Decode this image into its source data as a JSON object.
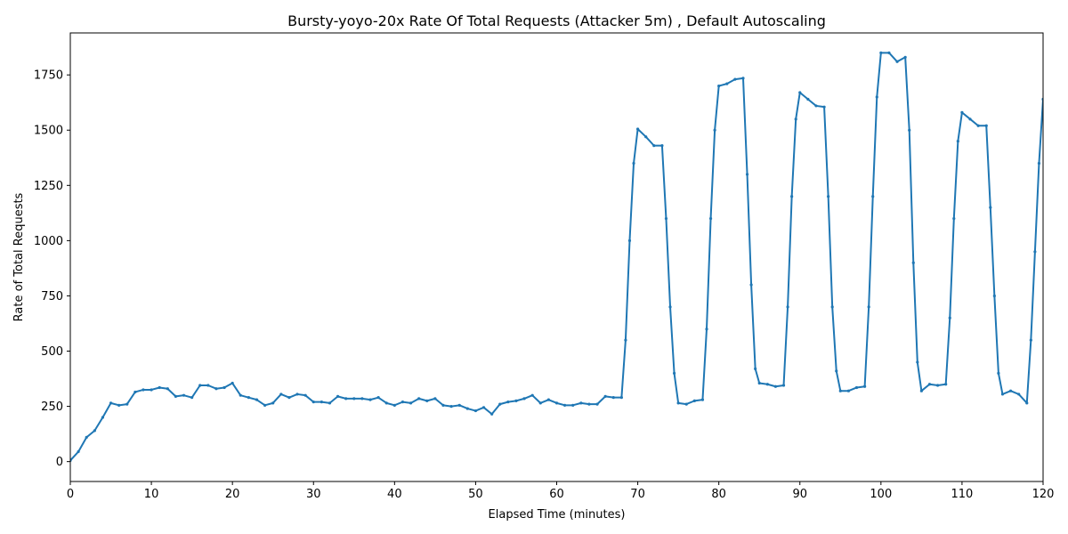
{
  "chart_data": {
    "type": "line",
    "title": "Bursty-yoyo-20x Rate Of Total Requests (Attacker 5m) , Default Autoscaling",
    "xlabel": "Elapsed Time (minutes)",
    "ylabel": "Rate of Total Requests",
    "xlim": [
      0,
      120
    ],
    "ylim": [
      -90,
      1940
    ],
    "xticks": [
      0,
      10,
      20,
      30,
      40,
      50,
      60,
      70,
      80,
      90,
      100,
      110,
      120
    ],
    "yticks": [
      0,
      250,
      500,
      750,
      1000,
      1250,
      1500,
      1750
    ],
    "grid": false,
    "legend": "none",
    "colors": {
      "series": "#1f77b4",
      "axes": "#000000"
    },
    "series": [
      {
        "marker": "point",
        "x": [
          0,
          1,
          2,
          3,
          4,
          5,
          6,
          7,
          8,
          9,
          10,
          11,
          12,
          13,
          14,
          15,
          16,
          17,
          18,
          19,
          20,
          21,
          22,
          23,
          24,
          25,
          26,
          27,
          28,
          29,
          30,
          31,
          32,
          33,
          34,
          35,
          36,
          37,
          38,
          39,
          40,
          41,
          42,
          43,
          44,
          45,
          46,
          47,
          48,
          49,
          50,
          51,
          52,
          53,
          54,
          55,
          56,
          57,
          58,
          59,
          60,
          61,
          62,
          63,
          64,
          65,
          66,
          67,
          68,
          68.5,
          69,
          69.5,
          70,
          71,
          72,
          73,
          73.5,
          74,
          74.5,
          75,
          76,
          77,
          78,
          78.5,
          79,
          79.5,
          80,
          81,
          82,
          83,
          83.5,
          84,
          84.5,
          85,
          86,
          87,
          88,
          88.5,
          89,
          89.5,
          90,
          91,
          92,
          93,
          93.5,
          94,
          94.5,
          95,
          96,
          97,
          98,
          98.5,
          99,
          99.5,
          100,
          101,
          102,
          103,
          103.5,
          104,
          104.5,
          105,
          106,
          107,
          108,
          108.5,
          109,
          109.5,
          110,
          111,
          112,
          113,
          113.5,
          114,
          114.5,
          115,
          116,
          117,
          118,
          118.5,
          119,
          119.5,
          120
        ],
        "y": [
          5,
          45,
          110,
          140,
          200,
          265,
          255,
          260,
          315,
          325,
          325,
          335,
          330,
          295,
          300,
          290,
          345,
          345,
          330,
          335,
          355,
          300,
          290,
          280,
          255,
          265,
          305,
          290,
          305,
          300,
          270,
          270,
          265,
          295,
          285,
          285,
          285,
          280,
          290,
          265,
          255,
          270,
          265,
          285,
          275,
          285,
          255,
          250,
          255,
          240,
          230,
          245,
          215,
          260,
          270,
          275,
          285,
          300,
          265,
          280,
          265,
          255,
          255,
          265,
          260,
          260,
          295,
          290,
          290,
          550,
          1000,
          1350,
          1505,
          1470,
          1430,
          1430,
          1100,
          700,
          400,
          265,
          260,
          275,
          280,
          600,
          1100,
          1500,
          1700,
          1710,
          1730,
          1735,
          1300,
          800,
          420,
          355,
          350,
          340,
          345,
          700,
          1200,
          1550,
          1670,
          1640,
          1610,
          1605,
          1200,
          700,
          410,
          320,
          320,
          335,
          340,
          700,
          1200,
          1650,
          1850,
          1850,
          1810,
          1830,
          1500,
          900,
          450,
          320,
          350,
          345,
          350,
          650,
          1100,
          1450,
          1580,
          1550,
          1520,
          1520,
          1150,
          750,
          400,
          305,
          320,
          305,
          265,
          550,
          950,
          1350,
          1640
        ]
      }
    ]
  }
}
